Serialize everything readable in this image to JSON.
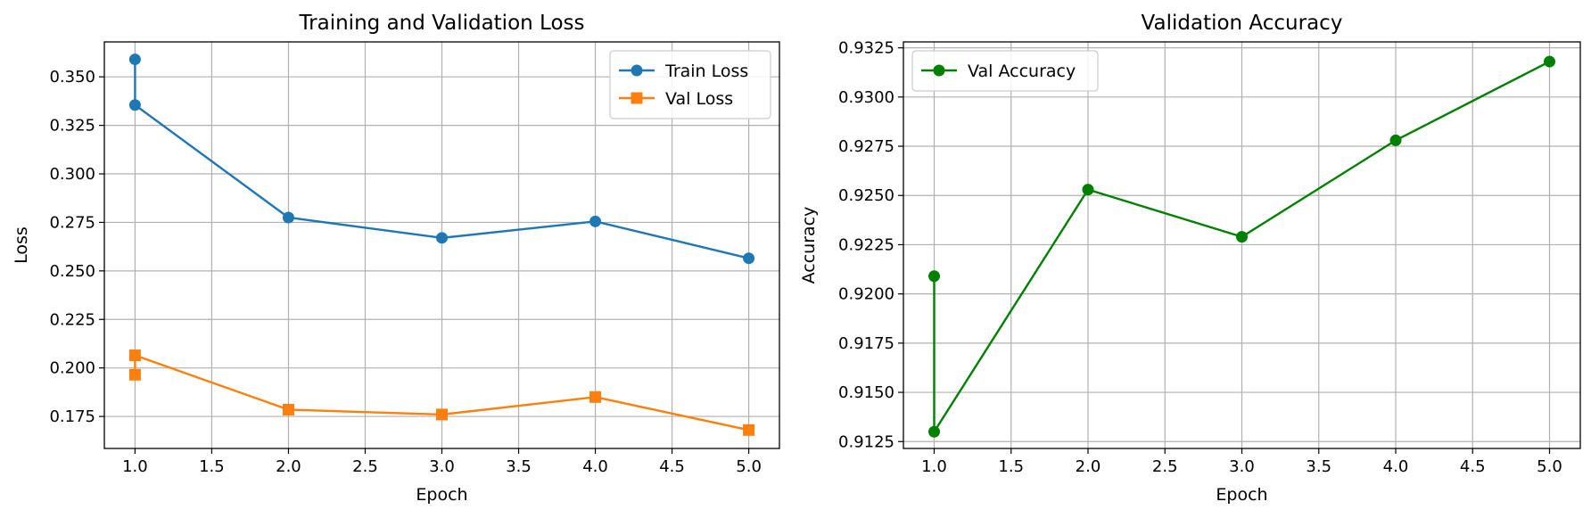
{
  "chart_data": [
    {
      "type": "line",
      "title": "Training and Validation Loss",
      "xlabel": "Epoch",
      "ylabel": "Loss",
      "xlim": [
        0.8,
        5.2
      ],
      "ylim": [
        0.1585,
        0.368
      ],
      "x_ticks": [
        "1.0",
        "1.5",
        "2.0",
        "2.5",
        "3.0",
        "3.5",
        "4.0",
        "4.5",
        "5.0"
      ],
      "y_ticks": [
        "0.175",
        "0.200",
        "0.225",
        "0.250",
        "0.275",
        "0.300",
        "0.325",
        "0.350"
      ],
      "grid": true,
      "legend_position": "upper right",
      "series": [
        {
          "name": "Train Loss",
          "color": "#1f77b4",
          "marker": "circle",
          "x": [
            1.0,
            1.0,
            2.0,
            3.0,
            4.0,
            5.0
          ],
          "y": [
            0.359,
            0.3355,
            0.2775,
            0.267,
            0.2755,
            0.2565
          ]
        },
        {
          "name": "Val Loss",
          "color": "#ff7f0e",
          "marker": "square",
          "x": [
            1.0,
            1.0,
            2.0,
            3.0,
            4.0,
            5.0
          ],
          "y": [
            0.1965,
            0.2065,
            0.1785,
            0.176,
            0.185,
            0.168
          ]
        }
      ]
    },
    {
      "type": "line",
      "title": "Validation Accuracy",
      "xlabel": "Epoch",
      "ylabel": "Accuracy",
      "xlim": [
        0.8,
        5.2
      ],
      "ylim": [
        0.91215,
        0.9328
      ],
      "x_ticks": [
        "1.0",
        "1.5",
        "2.0",
        "2.5",
        "3.0",
        "3.5",
        "4.0",
        "4.5",
        "5.0"
      ],
      "y_ticks": [
        "0.9125",
        "0.9150",
        "0.9175",
        "0.9200",
        "0.9225",
        "0.9250",
        "0.9275",
        "0.9300",
        "0.9325"
      ],
      "grid": true,
      "legend_position": "upper left",
      "series": [
        {
          "name": "Val Accuracy",
          "color": "#008000",
          "marker": "circle",
          "x": [
            1.0,
            1.0,
            2.0,
            3.0,
            4.0,
            5.0
          ],
          "y": [
            0.9209,
            0.913,
            0.9253,
            0.9229,
            0.9278,
            0.9318
          ]
        }
      ]
    }
  ]
}
